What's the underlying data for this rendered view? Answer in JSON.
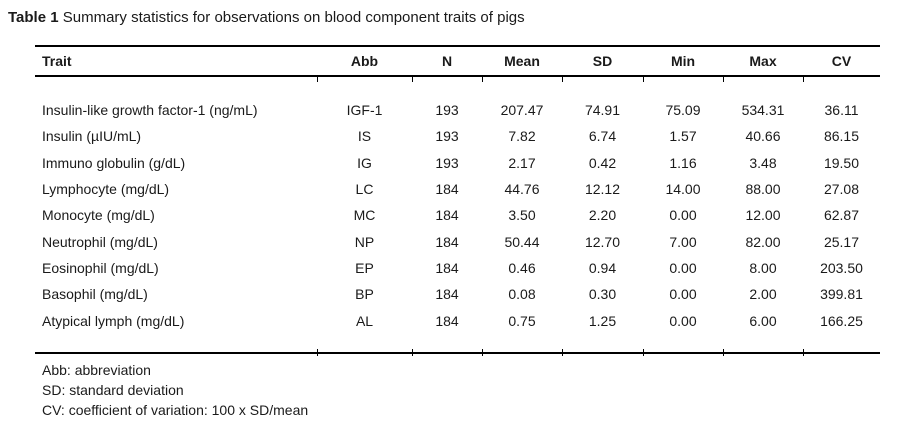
{
  "title": {
    "label": "Table 1",
    "text": "Summary statistics for observations on blood component traits of pigs"
  },
  "table": {
    "columns": [
      "Trait",
      "Abb",
      "N",
      "Mean",
      "SD",
      "Min",
      "Max",
      "CV"
    ],
    "rows": [
      [
        "Insulin-like growth factor-1 (ng/mL)",
        "IGF-1",
        "193",
        "207.47",
        "74.91",
        "75.09",
        "534.31",
        "36.11"
      ],
      [
        "Insulin (µIU/mL)",
        "IS",
        "193",
        "7.82",
        "6.74",
        "1.57",
        "40.66",
        "86.15"
      ],
      [
        "Immuno globulin (g/dL)",
        "IG",
        "193",
        "2.17",
        "0.42",
        "1.16",
        "3.48",
        "19.50"
      ],
      [
        "Lymphocyte (mg/dL)",
        "LC",
        "184",
        "44.76",
        "12.12",
        "14.00",
        "88.00",
        "27.08"
      ],
      [
        "Monocyte (mg/dL)",
        "MC",
        "184",
        "3.50",
        "2.20",
        "0.00",
        "12.00",
        "62.87"
      ],
      [
        "Neutrophil (mg/dL)",
        "NP",
        "184",
        "50.44",
        "12.70",
        "7.00",
        "82.00",
        "25.17"
      ],
      [
        "Eosinophil (mg/dL)",
        "EP",
        "184",
        "0.46",
        "0.94",
        "0.00",
        "8.00",
        "203.50"
      ],
      [
        "Basophil (mg/dL)",
        "BP",
        "184",
        "0.08",
        "0.30",
        "0.00",
        "2.00",
        "399.81"
      ],
      [
        "Atypical lymph (mg/dL)",
        "AL",
        "184",
        "0.75",
        "1.25",
        "0.00",
        "6.00",
        "166.25"
      ]
    ]
  },
  "footnotes": [
    "Abb: abbreviation",
    "SD: standard deviation",
    "CV: coefficient of variation: 100  x  SD/mean"
  ]
}
